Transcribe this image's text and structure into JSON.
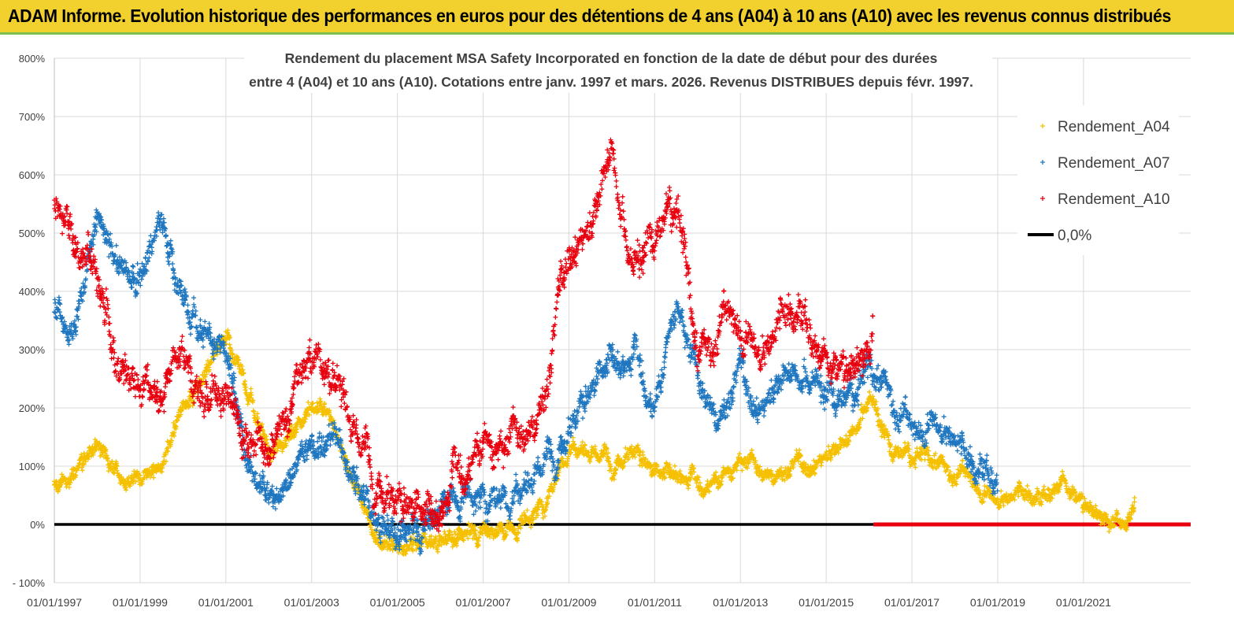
{
  "banner": {
    "title": "ADAM Informe. Evolution historique des performances en euros pour des détentions de 4 ans (A04) à 10 ans (A10) avec les revenus connus distribués"
  },
  "colors": {
    "banner_bg": "#f2d02e",
    "banner_border": "#7dbf4e",
    "a04": "#f5c000",
    "a07": "#1f77c0",
    "a10": "#e8000e",
    "zero_line": "#000000",
    "grid": "#d9d9d9"
  },
  "chart_data": {
    "type": "scatter",
    "title_line1": "Rendement du placement MSA Safety Incorporated en fonction de la date de début pour des durées",
    "title_line2": "entre 4 (A04) et 10 ans (A10). Cotations entre janv. 1997 et mars. 2026. Revenus DISTRIBUES depuis févr. 1997.",
    "ylim": [
      -100,
      800
    ],
    "yticks": [
      -100,
      0,
      100,
      200,
      300,
      400,
      500,
      600,
      700,
      800
    ],
    "ytick_labels": [
      "- 100%",
      "0%",
      "100%",
      "200%",
      "300%",
      "400%",
      "500%",
      "600%",
      "700%",
      "800%"
    ],
    "xlim": [
      1997.0,
      2023.5
    ],
    "xticks": [
      1997,
      1999,
      2001,
      2003,
      2005,
      2007,
      2009,
      2011,
      2013,
      2015,
      2017,
      2019,
      2021
    ],
    "xtick_labels": [
      "01/01/1997",
      "01/01/1999",
      "01/01/2001",
      "01/01/2003",
      "01/01/2005",
      "01/01/2007",
      "01/01/2009",
      "01/01/2011",
      "01/01/2013",
      "01/01/2015",
      "01/01/2017",
      "01/01/2019",
      "01/01/2021"
    ],
    "legend_position": "top-right",
    "grid": true,
    "series": [
      {
        "name": "Rendement_A04",
        "x": [
          1997.0,
          1997.5,
          1998.0,
          1998.5,
          1999.0,
          1999.5,
          2000.0,
          2000.5,
          2001.0,
          2001.5,
          2002.0,
          2002.5,
          2003.0,
          2003.5,
          2004.0,
          2004.5,
          2005.0,
          2005.5,
          2006.0,
          2006.5,
          2007.0,
          2007.5,
          2008.0,
          2008.5,
          2009.0,
          2009.5,
          2010.0,
          2010.5,
          2011.0,
          2011.5,
          2012.0,
          2012.5,
          2013.0,
          2013.5,
          2014.0,
          2014.5,
          2015.0,
          2015.5,
          2016.0,
          2016.5,
          2017.0,
          2017.5,
          2018.0,
          2018.5,
          2019.0,
          2019.5,
          2020.0,
          2020.5,
          2021.0,
          2021.5,
          2022.0,
          2022.2
        ],
        "values": [
          70,
          100,
          140,
          95,
          80,
          90,
          200,
          260,
          330,
          230,
          130,
          160,
          210,
          180,
          60,
          -20,
          -50,
          -40,
          -30,
          -20,
          -10,
          -20,
          0,
          40,
          130,
          120,
          110,
          130,
          90,
          100,
          60,
          80,
          110,
          90,
          100,
          110,
          120,
          140,
          220,
          130,
          120,
          110,
          100,
          70,
          50,
          60,
          40,
          90,
          40,
          10,
          20,
          40
        ]
      },
      {
        "name": "Rendement_A07",
        "x": [
          1997.0,
          1997.5,
          1998.0,
          1998.5,
          1999.0,
          1999.5,
          2000.0,
          2000.5,
          2001.0,
          2001.5,
          2002.0,
          2002.5,
          2003.0,
          2003.5,
          2004.0,
          2004.5,
          2005.0,
          2005.5,
          2006.0,
          2006.5,
          2007.0,
          2007.5,
          2008.0,
          2008.5,
          2009.0,
          2009.5,
          2010.0,
          2010.5,
          2011.0,
          2011.5,
          2012.0,
          2012.5,
          2013.0,
          2013.5,
          2014.0,
          2014.5,
          2015.0,
          2015.5,
          2016.0,
          2016.5,
          2017.0,
          2017.5,
          2018.0,
          2018.5,
          2019.0
        ],
        "values": [
          380,
          350,
          520,
          430,
          430,
          530,
          380,
          330,
          320,
          120,
          40,
          80,
          130,
          150,
          60,
          0,
          -20,
          -10,
          20,
          40,
          40,
          40,
          60,
          110,
          170,
          230,
          300,
          280,
          200,
          390,
          240,
          200,
          270,
          210,
          250,
          260,
          220,
          220,
          260,
          240,
          160,
          190,
          160,
          90,
          90
        ]
      },
      {
        "name": "Rendement_A10",
        "x": [
          1997.0,
          1997.5,
          1998.0,
          1998.5,
          1999.0,
          1999.5,
          2000.0,
          2000.5,
          2001.0,
          2001.5,
          2002.0,
          2002.5,
          2003.0,
          2003.5,
          2004.0,
          2004.5,
          2005.0,
          2005.5,
          2006.0,
          2006.5,
          2007.0,
          2007.5,
          2008.0,
          2008.5,
          2009.0,
          2009.5,
          2010.0,
          2010.5,
          2011.0,
          2011.5,
          2012.0,
          2012.5,
          2013.0,
          2013.5,
          2014.0,
          2014.5,
          2015.0,
          2015.5,
          2016.0,
          2016.1
        ],
        "values": [
          540,
          480,
          440,
          290,
          230,
          210,
          250,
          220,
          230,
          140,
          140,
          180,
          300,
          260,
          150,
          90,
          40,
          30,
          40,
          80,
          150,
          130,
          160,
          260,
          500,
          510,
          640,
          430,
          500,
          560,
          290,
          360,
          350,
          310,
          370,
          350,
          310,
          270,
          300,
          380
        ]
      },
      {
        "name": "0,0%",
        "values": [
          0
        ]
      }
    ]
  }
}
